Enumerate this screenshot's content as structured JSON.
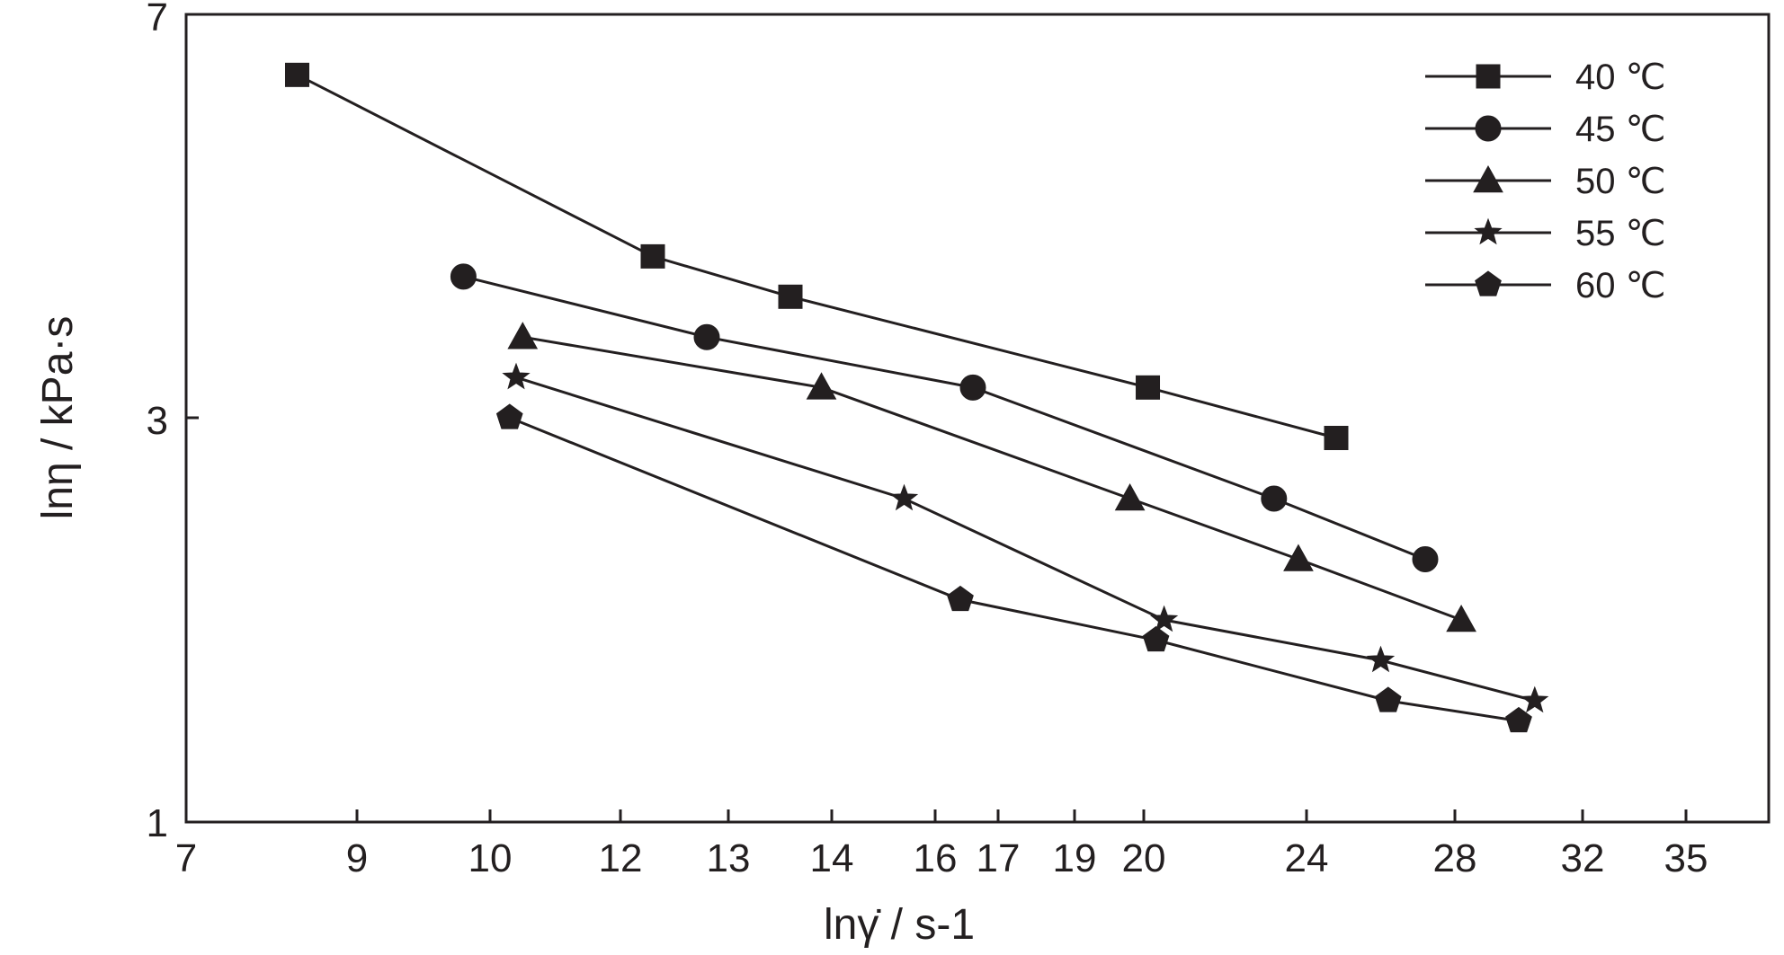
{
  "chart_data": {
    "type": "line",
    "title": "",
    "xlabel": "lnγ̇ / s-1",
    "ylabel": "lnη / kPa·s",
    "x_ticks": [
      "7",
      "9",
      "10",
      "12",
      "13",
      "14",
      "16",
      "17",
      "19",
      "20",
      "24",
      "28",
      "32",
      "35"
    ],
    "y_ticks": [
      "1",
      "3",
      "7"
    ],
    "grid": false,
    "legend_position": "top-right",
    "series": [
      {
        "name": "40 ℃",
        "marker": "square",
        "x": [
          8.3,
          12.3,
          13.6,
          20.1,
          24.8
        ],
        "y": [
          6.4,
          4.6,
          4.2,
          3.3,
          2.9
        ]
      },
      {
        "name": "45 ℃",
        "marker": "circle",
        "x": [
          9.8,
          12.8,
          16.6,
          23.2,
          27.2
        ],
        "y": [
          4.4,
          3.8,
          3.3,
          2.6,
          2.3
        ]
      },
      {
        "name": "50 ℃",
        "marker": "triangle",
        "x": [
          10.5,
          13.9,
          19.8,
          23.8,
          28.2
        ],
        "y": [
          3.8,
          3.3,
          2.6,
          2.3,
          2.0
        ]
      },
      {
        "name": "55 ℃",
        "marker": "star",
        "x": [
          10.4,
          15.4,
          20.5,
          26.0,
          30.5
        ],
        "y": [
          3.4,
          2.6,
          2.0,
          1.8,
          1.6
        ]
      },
      {
        "name": "60 ℃",
        "marker": "pentagon",
        "x": [
          10.3,
          16.4,
          20.3,
          26.2,
          30.0
        ],
        "y": [
          3.0,
          2.1,
          1.9,
          1.6,
          1.5
        ]
      }
    ]
  }
}
